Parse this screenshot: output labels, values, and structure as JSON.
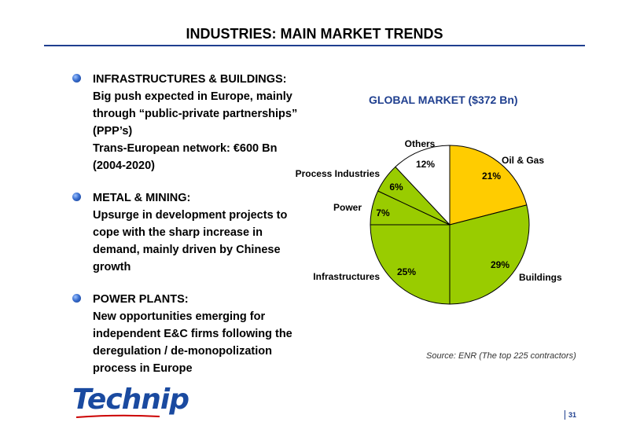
{
  "header": {
    "title": "INDUSTRIES: MAIN MARKET TRENDS"
  },
  "bullets": [
    {
      "head": "INFRASTRUCTURES & BUILDINGS:",
      "lines": [
        "Big push expected in Europe, mainly",
        "through “public-private partnerships”",
        "(PPP’s)",
        "Trans-European network: €600 Bn",
        "(2004-2020)"
      ]
    },
    {
      "head": "METAL & MINING:",
      "lines": [
        "Upsurge in development projects to",
        "cope with the sharp increase in",
        "demand, mainly driven by Chinese",
        "growth"
      ]
    },
    {
      "head": "POWER PLANTS:",
      "lines": [
        "New opportunities emerging for",
        "independent E&C firms following the",
        "deregulation / de-monopolization",
        "process in Europe"
      ]
    }
  ],
  "chart_data": {
    "type": "pie",
    "title": "GLOBAL MARKET ($372 Bn)",
    "categories": [
      "Oil & Gas",
      "Buildings",
      "Infrastructures",
      "Power",
      "Process Industries",
      "Others"
    ],
    "values": [
      21,
      29,
      25,
      7,
      6,
      12
    ],
    "value_labels": [
      "21%",
      "29%",
      "25%",
      "7%",
      "6%",
      "12%"
    ],
    "colors": [
      "#ffcc00",
      "#99cc00",
      "#99cc00",
      "#99cc00",
      "#99cc00",
      "#ffffff"
    ],
    "legend": "none"
  },
  "source": "Source: ENR (The top 225 contractors)",
  "logo": {
    "text": "Technip"
  },
  "page_number": "31"
}
